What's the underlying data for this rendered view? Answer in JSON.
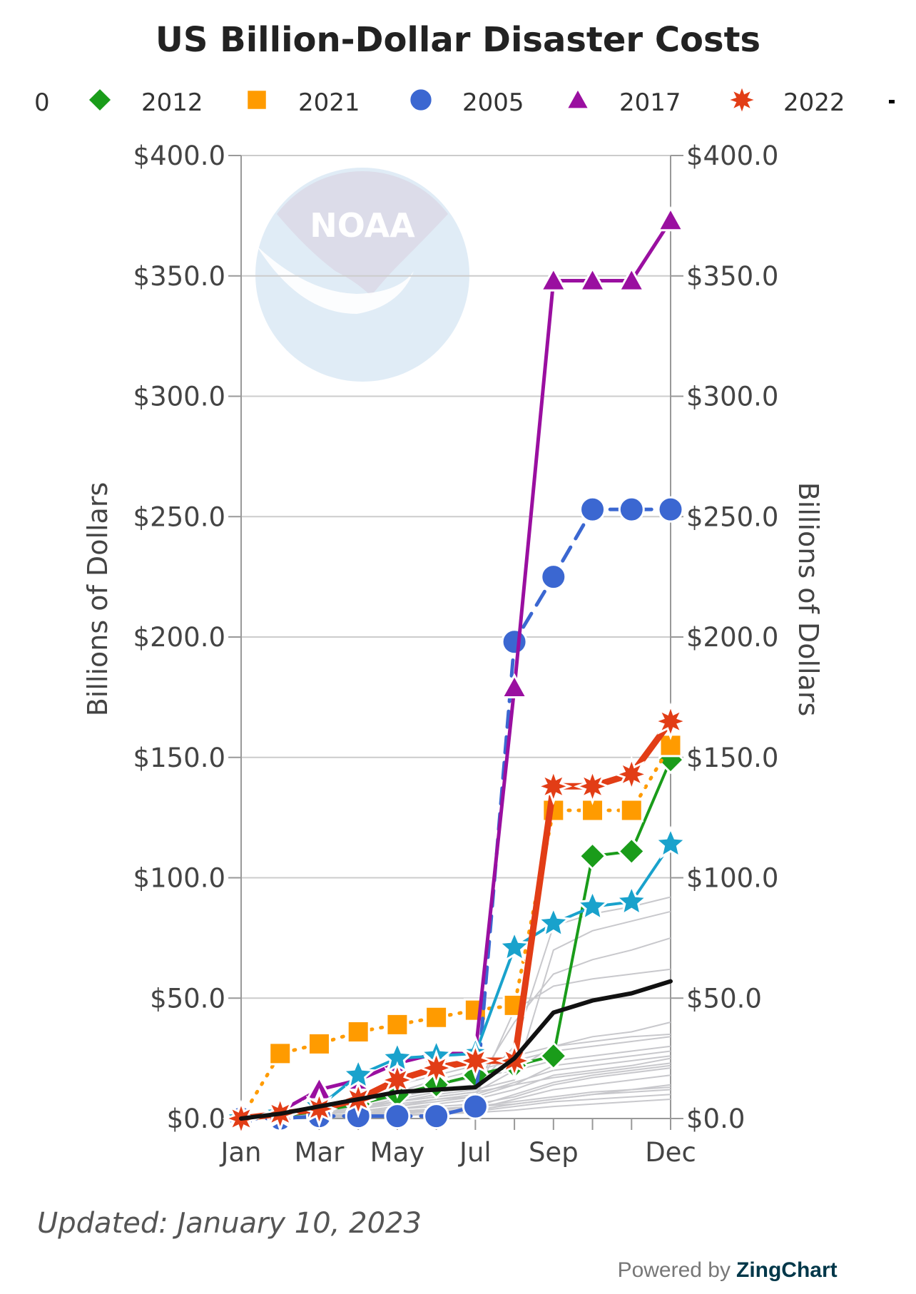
{
  "updated": "Updated: January 10, 2023",
  "powered_by": {
    "prefix": "Powered by",
    "brand": "ZingChart"
  },
  "watermark": {
    "text": "NOAA",
    "icon": "noaa-logo"
  },
  "chart_data": {
    "type": "line",
    "title": "US Billion-Dollar Disaster Costs",
    "ylabel_left": "Billions of Dollars",
    "ylabel_right": "Billions of Dollars",
    "ylim": [
      0,
      400
    ],
    "y_ticks": [
      "$0.0",
      "$50.0",
      "$100.0",
      "$150.0",
      "$200.0",
      "$250.0",
      "$300.0",
      "$350.0",
      "$400.0"
    ],
    "y_tick_values": [
      0,
      50,
      100,
      150,
      200,
      250,
      300,
      350,
      400
    ],
    "x_months": 12,
    "x_tick_labels": [
      {
        "month": 1,
        "label": "Jan"
      },
      {
        "month": 3,
        "label": "Mar"
      },
      {
        "month": 5,
        "label": "May"
      },
      {
        "month": 7,
        "label": "Jul"
      },
      {
        "month": 9,
        "label": "Sep"
      },
      {
        "month": 12,
        "label": "Dec"
      }
    ],
    "grid": true,
    "legend_placement": "top",
    "legend": [
      {
        "label": "0",
        "marker": "none",
        "color": "#333333"
      },
      {
        "label": "2012",
        "marker": "diamond",
        "color": "#1a9c1a"
      },
      {
        "label": "2021",
        "marker": "square",
        "color": "#ff9b00"
      },
      {
        "label": "2005",
        "marker": "circle",
        "color": "#3b67d1"
      },
      {
        "label": "2017",
        "marker": "triangle",
        "color": "#9a0fa0"
      },
      {
        "label": "2022",
        "marker": "star8",
        "color": "#e23d16"
      },
      {
        "label": "",
        "marker": "dash",
        "color": "#000000"
      }
    ],
    "background_series": [
      [
        0,
        0.5,
        1,
        1.5,
        2,
        3,
        4,
        8,
        12,
        14,
        16,
        18
      ],
      [
        0,
        1,
        2,
        4,
        6,
        8,
        9,
        14,
        22,
        24,
        26,
        28
      ],
      [
        0,
        0.5,
        1,
        2,
        3,
        4,
        5,
        10,
        15,
        18,
        20,
        22
      ],
      [
        0,
        0,
        0.5,
        1,
        2,
        3,
        3.5,
        6,
        8,
        10,
        12,
        14
      ],
      [
        0,
        1,
        3,
        5,
        7,
        9,
        11,
        20,
        30,
        34,
        36,
        40
      ],
      [
        0,
        2,
        4,
        6,
        9,
        12,
        14,
        40,
        60,
        66,
        70,
        75
      ],
      [
        0,
        1,
        2,
        5,
        8,
        11,
        13,
        30,
        80,
        85,
        88,
        92
      ],
      [
        0,
        0.5,
        1,
        2,
        4,
        6,
        8,
        12,
        18,
        20,
        22,
        25
      ],
      [
        0,
        0.3,
        0.8,
        1.5,
        2.5,
        3.5,
        5,
        7,
        9,
        11,
        12,
        13
      ],
      [
        0,
        2,
        5,
        9,
        14,
        18,
        22,
        26,
        30,
        32,
        34,
        35
      ],
      [
        0,
        1,
        2,
        3,
        5,
        7,
        9,
        45,
        55,
        58,
        60,
        62
      ],
      [
        0,
        0.5,
        1.5,
        3,
        5,
        8,
        10,
        15,
        20,
        22,
        24,
        26
      ],
      [
        0,
        0.2,
        0.5,
        1,
        1.5,
        2,
        3,
        5,
        7,
        8,
        9,
        10
      ],
      [
        0,
        1,
        3,
        6,
        10,
        14,
        17,
        20,
        24,
        26,
        28,
        30
      ],
      [
        0,
        0.5,
        2,
        4,
        7,
        10,
        12,
        16,
        70,
        78,
        82,
        86
      ],
      [
        0,
        1,
        2,
        3,
        4,
        5,
        6,
        9,
        14,
        17,
        19,
        21
      ],
      [
        0,
        0.2,
        0.4,
        0.8,
        1.2,
        1.8,
        2.5,
        3.5,
        5,
        6,
        7,
        8
      ],
      [
        0,
        1,
        3,
        5,
        7,
        9,
        11,
        14,
        17,
        19,
        21,
        23
      ],
      [
        0,
        0.5,
        1,
        2,
        3,
        4,
        5,
        6,
        8,
        10,
        11,
        12
      ],
      [
        0,
        2,
        4,
        7,
        11,
        16,
        20,
        24,
        28,
        30,
        32,
        34
      ]
    ],
    "series": [
      {
        "name": "2012",
        "color": "#1a9c1a",
        "marker": "diamond",
        "dash": "solid",
        "width": 4,
        "values": [
          0,
          1,
          3,
          6,
          10,
          14,
          18,
          22,
          26,
          109,
          111,
          149
        ]
      },
      {
        "name": "2021",
        "color": "#ff9b00",
        "marker": "square",
        "dash": "dotted",
        "width": 5,
        "values": [
          0,
          27,
          31,
          36,
          39,
          42,
          45,
          47,
          128,
          128,
          128,
          155
        ]
      },
      {
        "name": "2005",
        "color": "#3b67d1",
        "marker": "circle",
        "dash": "dashed",
        "width": 5,
        "values": [
          0,
          0,
          1,
          1,
          1,
          1,
          5,
          198,
          225,
          253,
          253,
          253
        ]
      },
      {
        "name": "2017",
        "color": "#9a0fa0",
        "marker": "triangle",
        "dash": "solid",
        "width": 5,
        "values": [
          0,
          3,
          12,
          16,
          23,
          27,
          27,
          179,
          348,
          348,
          348,
          373
        ]
      },
      {
        "name": "",
        "color": "#19a2cc",
        "marker": "star5",
        "dash": "solid",
        "width": 4,
        "values": [
          0,
          2,
          5,
          18,
          25,
          26,
          27,
          71,
          81,
          88,
          90,
          114
        ]
      },
      {
        "name": "2022",
        "color": "#e23d16",
        "marker": "star8",
        "dash": "solid",
        "width": 9,
        "values": [
          0,
          2,
          4,
          8,
          16,
          21,
          24,
          24,
          138,
          138,
          143,
          165
        ]
      },
      {
        "name": "",
        "color": "#111111",
        "marker": "none",
        "dash": "solid",
        "width": 6,
        "values": [
          0,
          2,
          5,
          8,
          11,
          12,
          13,
          25,
          44,
          49,
          52,
          57
        ]
      }
    ]
  }
}
